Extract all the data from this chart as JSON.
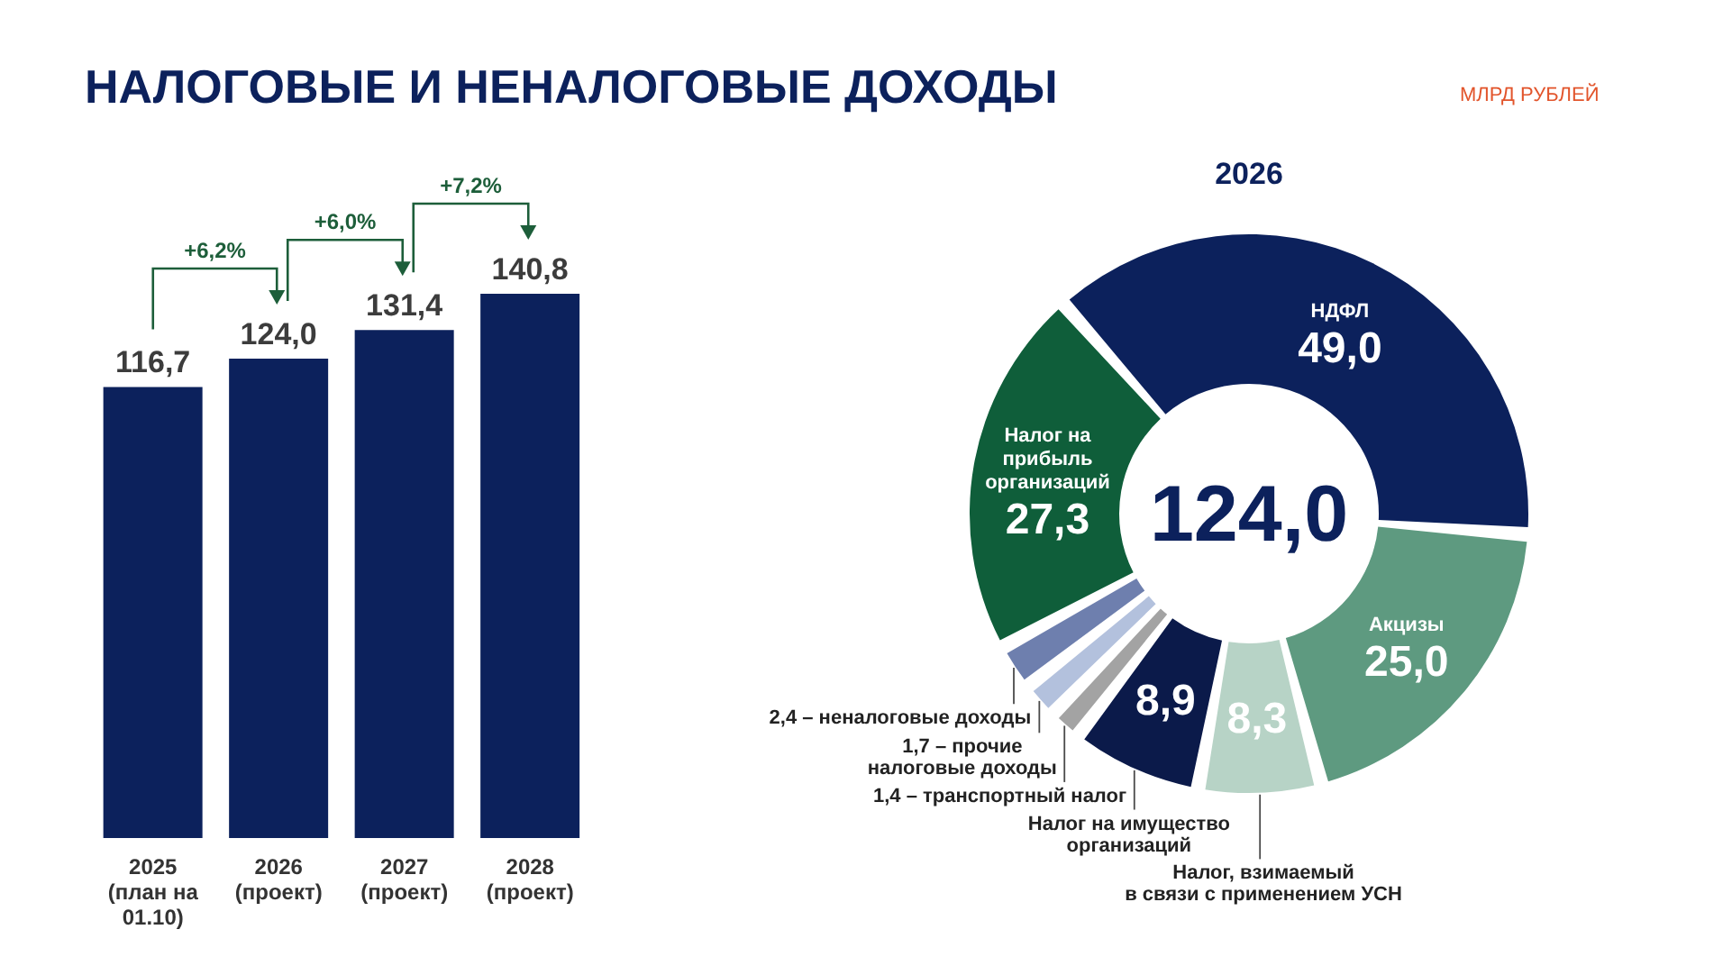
{
  "chart_data": [
    {
      "type": "bar",
      "title": "НАЛОГОВЫЕ И НЕНАЛОГОВЫЕ ДОХОДЫ",
      "categories": [
        "2025\n(план на\n01.10)",
        "2026\n(проект)",
        "2027\n(проект)",
        "2028\n(проект)"
      ],
      "values": [
        116.7,
        124.0,
        131.4,
        140.8
      ],
      "color": "#0c215c",
      "value_labels": [
        "116,7",
        "124,0",
        "131,4",
        "140,8"
      ],
      "annotations": [
        "+6,2%",
        "+6,0%",
        "+7,2%"
      ],
      "tick_labels": "x"
    },
    {
      "type": "donut",
      "title": "2026",
      "subtitle": "МЛРД РУБЛЕЙ",
      "categories": [
        "НДФЛ",
        "Акцизы",
        "Налог, взимаемый\nв связи с применением УСН",
        "Налог на имущество\nорганизаций",
        "1,4 – транспортный налог",
        "1,7 – прочие\nналоговые доходы",
        "2,4 – неналоговые доходы",
        "Налог на\nприбыль\nорганизаций"
      ],
      "values": [
        49.0,
        25.0,
        8.3,
        8.9,
        1.4,
        1.7,
        2.4,
        27.3
      ],
      "colors": [
        "#0c215c",
        "#5e9a80",
        "#b7d3c6",
        "#0b1a4a",
        "#a3a3a3",
        "#b3c1dd",
        "#6e7fae",
        "#0f5e3a"
      ],
      "value_labels": [
        "49,0",
        "25,0",
        "8,3",
        "8,9",
        null,
        null,
        null,
        "27,3"
      ],
      "annotations": [
        "124,0"
      ]
    }
  ]
}
